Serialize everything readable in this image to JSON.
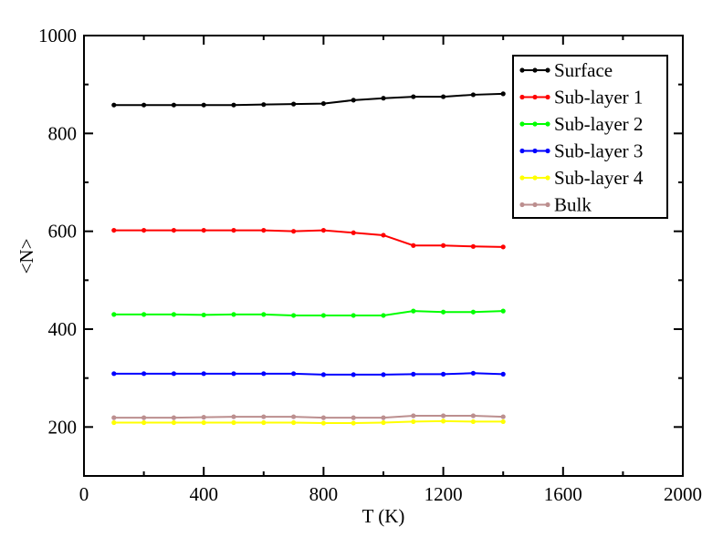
{
  "chart_data": {
    "type": "line",
    "xlabel": "T (K)",
    "ylabel": "<N>",
    "xlim": [
      0,
      2000
    ],
    "ylim": [
      100,
      1000
    ],
    "xticks": [
      0,
      400,
      800,
      1200,
      1600,
      2000
    ],
    "yticks": [
      200,
      400,
      600,
      800,
      1000
    ],
    "xtick_labels": [
      "0",
      "400",
      "800",
      "1200",
      "1600",
      "2000"
    ],
    "ytick_labels": [
      "200",
      "400",
      "600",
      "800",
      "1000"
    ],
    "grid": false,
    "legend_position": "top-right",
    "x": [
      100,
      200,
      300,
      400,
      500,
      600,
      700,
      800,
      900,
      1000,
      1100,
      1200,
      1300,
      1400
    ],
    "series": [
      {
        "name": "Surface",
        "color": "#000000",
        "values": [
          858,
          858,
          858,
          858,
          858,
          859,
          860,
          861,
          868,
          872,
          875,
          875,
          879,
          881
        ]
      },
      {
        "name": "Sub-layer 1",
        "color": "#ff0000",
        "values": [
          602,
          602,
          602,
          602,
          602,
          602,
          600,
          602,
          597,
          592,
          571,
          571,
          569,
          568
        ]
      },
      {
        "name": "Sub-layer 2",
        "color": "#00ff00",
        "values": [
          430,
          430,
          430,
          429,
          430,
          430,
          428,
          428,
          428,
          428,
          437,
          435,
          435,
          437
        ]
      },
      {
        "name": "Sub-layer 3",
        "color": "#0000ff",
        "values": [
          309,
          309,
          309,
          309,
          309,
          309,
          309,
          307,
          307,
          307,
          308,
          308,
          310,
          308
        ]
      },
      {
        "name": "Sub-layer 4",
        "color": "#ffff00",
        "values": [
          209,
          209,
          209,
          209,
          209,
          209,
          209,
          208,
          208,
          209,
          211,
          212,
          211,
          211
        ]
      },
      {
        "name": "Bulk",
        "color": "#bc8f8f",
        "values": [
          219,
          219,
          219,
          220,
          221,
          221,
          221,
          219,
          219,
          219,
          223,
          223,
          223,
          221
        ]
      }
    ]
  }
}
